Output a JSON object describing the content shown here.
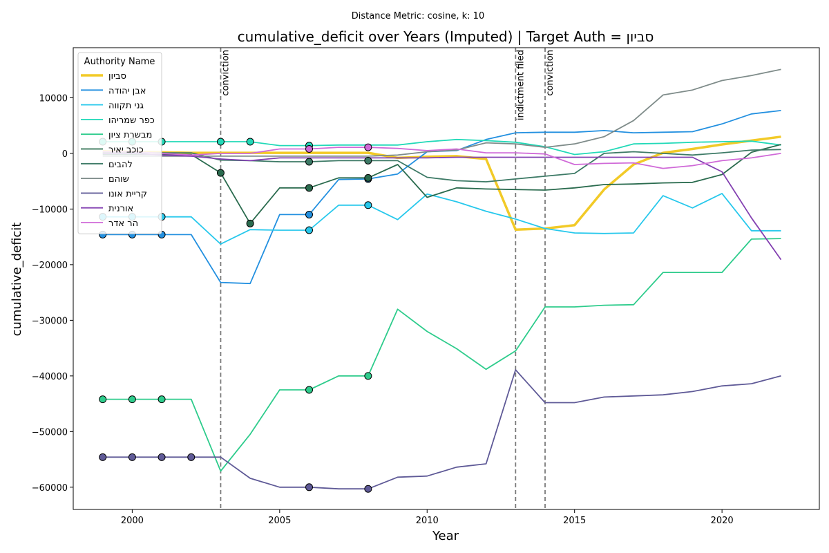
{
  "chart_data": {
    "type": "line",
    "suptitle": "Distance Metric: cosine, k: 10",
    "title": "cumulative_deficit over Years (Imputed) | Target Auth = סביון",
    "xlabel": "Year",
    "ylabel": "cumulative_deficit",
    "xlim": [
      1998,
      2023.3
    ],
    "ylim": [
      -64000,
      19000
    ],
    "xticks": [
      2000,
      2005,
      2010,
      2015,
      2020
    ],
    "yticks": [
      10000,
      0,
      -10000,
      -20000,
      -30000,
      -40000,
      -50000,
      -60000
    ],
    "ytick_labels": [
      "10000",
      "0",
      "−10000",
      "−20000",
      "−30000",
      "−40000",
      "−50000",
      "−60000"
    ],
    "grid": false,
    "legend": {
      "title": "Authority Name",
      "position": "top-left"
    },
    "events": [
      {
        "year": 2003,
        "label": "conviction"
      },
      {
        "year": 2013,
        "label": "indictment filed"
      },
      {
        "year": 2014,
        "label": "conviction"
      }
    ],
    "x": [
      1999,
      2000,
      2001,
      2002,
      2003,
      2004,
      2005,
      2006,
      2007,
      2008,
      2009,
      2010,
      2011,
      2012,
      2013,
      2014,
      2015,
      2016,
      2017,
      2018,
      2019,
      2020,
      2021,
      2022
    ],
    "series": [
      {
        "name": "סביון",
        "color": "#f2ca27",
        "target": true,
        "values": [
          400,
          300,
          200,
          100,
          100,
          100,
          100,
          100,
          100,
          100,
          -800,
          -600,
          -500,
          -1000,
          -13700,
          -13500,
          -12900,
          -6500,
          -2000,
          100,
          800,
          1600,
          2300,
          3000
        ],
        "imputed": []
      },
      {
        "name": "אבן יהודה",
        "color": "#2390e0",
        "values": [
          -14600,
          -14600,
          -14600,
          -14600,
          -23200,
          -23400,
          -11000,
          -11000,
          -4700,
          -4600,
          -3700,
          300,
          500,
          2500,
          3700,
          3800,
          3800,
          4100,
          3700,
          3800,
          3900,
          5300,
          7100,
          7700
        ],
        "imputed": [
          1999,
          2000,
          2001,
          2006,
          2008
        ]
      },
      {
        "name": "גני תקווה",
        "color": "#27c8ec",
        "values": [
          -11400,
          -11400,
          -11400,
          -11400,
          -16300,
          -13700,
          -13800,
          -13800,
          -9300,
          -9300,
          -11900,
          -7300,
          -8700,
          -10400,
          -11800,
          -13500,
          -14300,
          -14400,
          -14300,
          -7600,
          -9800,
          -7200,
          -13900,
          -13900
        ],
        "imputed": [
          1999,
          2000,
          2001,
          2006,
          2008
        ]
      },
      {
        "name": "כפר שמריהו",
        "color": "#22d9b8",
        "values": [
          2100,
          2100,
          2100,
          2100,
          2100,
          2100,
          1400,
          1400,
          1500,
          1500,
          1500,
          2100,
          2500,
          2300,
          2000,
          1200,
          -200,
          300,
          1700,
          1800,
          2000,
          2100,
          2200,
          1500
        ],
        "imputed": [
          1999,
          2000,
          2001,
          2003,
          2004,
          2006
        ]
      },
      {
        "name": "מבשרת ציון",
        "color": "#2ecc8c",
        "values": [
          -44200,
          -44200,
          -44200,
          -44200,
          -57100,
          -50500,
          -42500,
          -42500,
          -40000,
          -40000,
          -28000,
          -32000,
          -35100,
          -38800,
          -35500,
          -27600,
          -27600,
          -27300,
          -27200,
          -21400,
          -21400,
          -21400,
          -15400,
          -15300
        ],
        "imputed": [
          1999,
          2000,
          2001,
          2006,
          2008
        ]
      },
      {
        "name": "כוכב יאיר",
        "color": "#2a6b4e",
        "values": [
          -200,
          -200,
          -200,
          -200,
          -3500,
          -12600,
          -6200,
          -6200,
          -4400,
          -4400,
          -2000,
          -7900,
          -6200,
          -6400,
          -6500,
          -6600,
          -6200,
          -5600,
          -5500,
          -5300,
          -5200,
          -3800,
          200,
          1600
        ],
        "imputed": [
          2003,
          2004,
          2006,
          2008
        ]
      },
      {
        "name": "להבים",
        "color": "#3d7a66",
        "values": [
          100,
          100,
          100,
          100,
          -1200,
          -1300,
          -1500,
          -1500,
          -1300,
          -1300,
          -1300,
          -4300,
          -4900,
          -5100,
          -4600,
          -4100,
          -3600,
          0,
          300,
          0,
          -300,
          100,
          600,
          700
        ],
        "imputed": [
          2006,
          2008
        ]
      },
      {
        "name": "שוהם",
        "color": "#7f8c8a",
        "values": [
          -500,
          -500,
          -500,
          -500,
          -500,
          -500,
          -500,
          -500,
          -500,
          -500,
          -300,
          300,
          600,
          1900,
          1700,
          1100,
          1700,
          3000,
          5900,
          10500,
          11400,
          13100,
          14000,
          15100
        ],
        "imputed": []
      },
      {
        "name": "קריית אונו",
        "color": "#5f5a97",
        "values": [
          -54600,
          -54600,
          -54600,
          -54600,
          -54600,
          -58400,
          -60000,
          -60000,
          -60300,
          -60300,
          -58200,
          -58000,
          -56400,
          -55800,
          -38900,
          -44800,
          -44800,
          -43800,
          -43600,
          -43400,
          -42800,
          -41800,
          -41400,
          -40000
        ],
        "imputed": [
          1999,
          2000,
          2001,
          2002,
          2006,
          2008
        ]
      },
      {
        "name": "אורנית",
        "color": "#8340b1",
        "values": [
          0,
          0,
          -300,
          -500,
          -1000,
          -1300,
          -800,
          -800,
          -800,
          -800,
          -800,
          -800,
          -700,
          -700,
          -700,
          -700,
          -700,
          -700,
          -700,
          -700,
          -700,
          -3300,
          -11600,
          -19100
        ],
        "imputed": []
      },
      {
        "name": "הר אדר",
        "color": "#d06ad8",
        "values": [
          300,
          300,
          0,
          -300,
          0,
          0,
          800,
          800,
          1100,
          1100,
          900,
          500,
          800,
          100,
          100,
          -100,
          -2000,
          -1800,
          -1700,
          -2700,
          -2200,
          -1300,
          -800,
          0
        ],
        "imputed": [
          2006,
          2008
        ]
      }
    ]
  }
}
